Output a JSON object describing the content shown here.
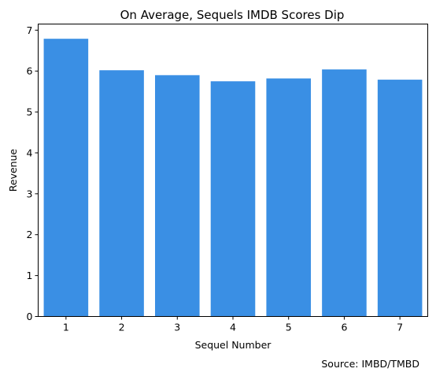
{
  "chart_data": {
    "type": "bar",
    "title": "On Average, Sequels IMDB Scores Dip",
    "xlabel": "Sequel Number",
    "ylabel": "Revenue",
    "categories": [
      "1",
      "2",
      "3",
      "4",
      "5",
      "6",
      "7"
    ],
    "values": [
      6.79,
      6.02,
      5.9,
      5.75,
      5.82,
      6.04,
      5.79
    ],
    "ylim": [
      0,
      7.15
    ],
    "yticks": [
      "0",
      "1",
      "2",
      "3",
      "4",
      "5",
      "6",
      "7"
    ],
    "bar_color": "#3a8fe4",
    "grid": false,
    "source": "Source: IMBD/TMBD"
  }
}
